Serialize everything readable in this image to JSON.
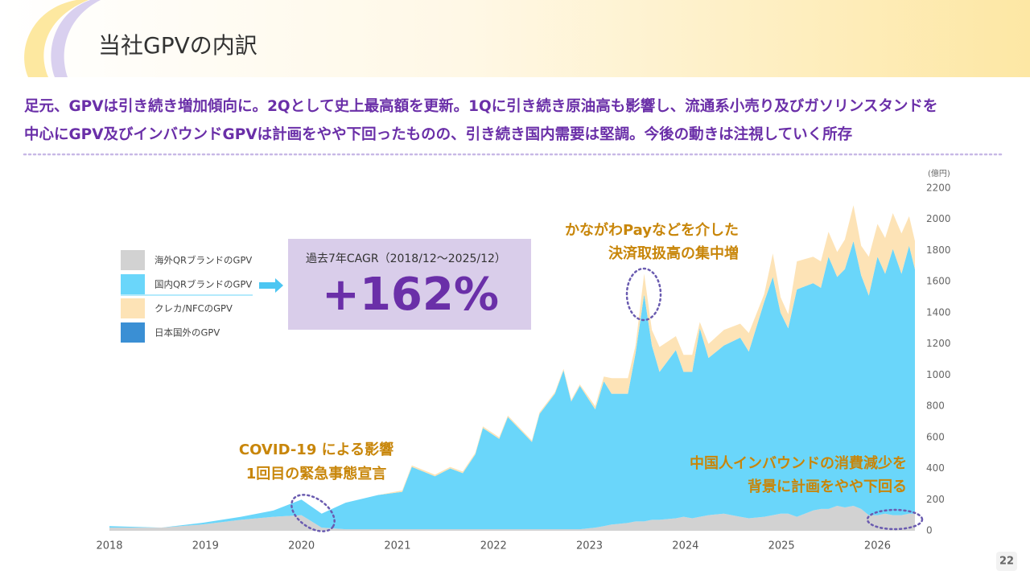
{
  "header": {
    "title": "当社GPVの内訳"
  },
  "lead": [
    "足元、GPVは引き続き増加傾向に。2Qとして史上最高額を更新。1Qに引き続き原油高も影響し、流通系小売り及びガソリンスタンドを",
    "中心にGPV及びインバウンドGPVは計画をやや下回ったものの、引き続き国内需要は堅調。今後の動きは注視していく所存"
  ],
  "page_number": "22",
  "chart_data": {
    "type": "stacked_area",
    "ylabel": "(億円)",
    "x": [
      2018.0,
      2018.54,
      2018.96,
      2019.37,
      2019.71,
      2020.0,
      2020.21,
      2020.46,
      2020.8,
      2021.05,
      2021.15,
      2021.39,
      2021.55,
      2021.68,
      2021.81,
      2021.89,
      2022.06,
      2022.15,
      2022.4,
      2022.48,
      2022.64,
      2022.73,
      2022.81,
      2022.9,
      2023.06,
      2023.15,
      2023.23,
      2023.4,
      2023.48,
      2023.57,
      2023.65,
      2023.73,
      2023.9,
      2023.98,
      2024.07,
      2024.15,
      2024.24,
      2024.4,
      2024.57,
      2024.66,
      2024.82,
      2024.91,
      2024.99,
      2025.07,
      2025.16,
      2025.33,
      2025.41,
      2025.49,
      2025.58,
      2025.66,
      2025.75,
      2025.83,
      2025.91,
      2026.0,
      2026.08,
      2026.16,
      2026.25,
      2026.33,
      2026.39
    ],
    "xlim": [
      2018,
      2026.39
    ],
    "xticks": [
      2018,
      2019,
      2020,
      2021,
      2022,
      2023,
      2024,
      2025,
      2026
    ],
    "ylim": [
      0,
      2200
    ],
    "yticks": [
      0,
      200,
      400,
      600,
      800,
      1000,
      1200,
      1400,
      1600,
      1800,
      2000,
      2200
    ],
    "grid": false,
    "series": [
      {
        "name": "海外QRブランドのGPV",
        "color": "#d2d2d2",
        "values": [
          20,
          20,
          40,
          70,
          90,
          100,
          20,
          10,
          10,
          10,
          10,
          10,
          10,
          10,
          10,
          10,
          10,
          10,
          10,
          10,
          10,
          10,
          10,
          10,
          20,
          30,
          40,
          50,
          60,
          60,
          70,
          70,
          80,
          90,
          80,
          90,
          100,
          110,
          90,
          80,
          90,
          100,
          110,
          110,
          90,
          130,
          140,
          140,
          160,
          150,
          160,
          140,
          100,
          100,
          110,
          100,
          100,
          110,
          110
        ]
      },
      {
        "name": "国内QRブランドのGPV",
        "color": "#6ad6fa",
        "values": [
          10,
          0,
          10,
          20,
          40,
          100,
          90,
          170,
          220,
          240,
          400,
          340,
          390,
          360,
          480,
          650,
          580,
          720,
          560,
          740,
          870,
          1020,
          820,
          920,
          760,
          930,
          840,
          830,
          1080,
          1460,
          1120,
          950,
          1080,
          930,
          940,
          1210,
          1010,
          1080,
          1150,
          1070,
          1380,
          1530,
          1290,
          1190,
          1460,
          1460,
          1420,
          1620,
          1470,
          1530,
          1700,
          1500,
          1410,
          1660,
          1540,
          1710,
          1550,
          1720,
          1570
        ]
      },
      {
        "name": "クレカ/NFCのGPV",
        "color": "#fde3b6",
        "values": [
          0,
          0,
          0,
          0,
          0,
          0,
          0,
          0,
          0,
          10,
          10,
          10,
          10,
          10,
          10,
          10,
          10,
          10,
          10,
          10,
          10,
          10,
          10,
          10,
          20,
          30,
          100,
          100,
          50,
          130,
          100,
          160,
          90,
          110,
          110,
          40,
          90,
          100,
          90,
          120,
          50,
          150,
          100,
          90,
          180,
          170,
          170,
          160,
          160,
          190,
          230,
          190,
          250,
          210,
          230,
          230,
          260,
          190,
          180
        ]
      },
      {
        "name": "日本国外のGPV",
        "color": "#3a8fd4",
        "values": [
          0,
          0,
          0,
          0,
          0,
          0,
          0,
          0,
          0,
          0,
          0,
          0,
          0,
          0,
          0,
          0,
          0,
          0,
          0,
          0,
          0,
          0,
          0,
          0,
          0,
          0,
          0,
          0,
          0,
          0,
          0,
          0,
          0,
          0,
          0,
          0,
          0,
          0,
          0,
          0,
          0,
          0,
          0,
          0,
          0,
          0,
          0,
          0,
          0,
          0,
          0,
          0,
          0,
          0,
          0,
          0,
          0,
          0,
          0
        ]
      }
    ],
    "callout": {
      "label": "過去7年CAGR（2018/12～2025/12）",
      "value": "+162%"
    },
    "annotations": [
      [
        "COVID-19 による影響",
        "1回目の緊急事態宣言"
      ],
      [
        "かながわPayなどを介した",
        "決済取扱高の集中増"
      ],
      [
        "中国人インバウンドの消費減少を",
        "背景に計画をやや下回る"
      ]
    ]
  }
}
